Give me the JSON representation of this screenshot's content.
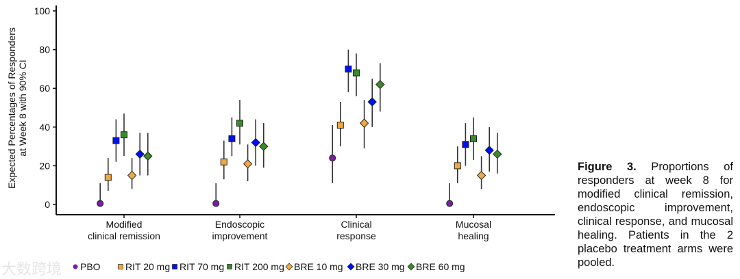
{
  "chart_data": {
    "type": "scatter",
    "ylabel": "Expected Percentages of Responders at Week 8 with 90% CI",
    "ylabel_lines": [
      "Expected Percentages of Responders",
      "at Week 8 with 90% CI"
    ],
    "ylim": [
      0,
      100
    ],
    "yticks": [
      "0",
      "20",
      "40",
      "60",
      "80",
      "100"
    ],
    "categories": [
      [
        "Modified",
        "clinical remission"
      ],
      [
        "Endoscopic",
        "improvement"
      ],
      [
        "Clinical",
        "response"
      ],
      [
        "Mucosal",
        "healing"
      ]
    ],
    "series": [
      {
        "name": "PBO",
        "marker": "circle",
        "color": "#7b1fa2",
        "values": [
          0.5,
          0.5,
          24,
          0.5
        ],
        "ci": [
          [
            0,
            11
          ],
          [
            0,
            11
          ],
          [
            11,
            41
          ],
          [
            0,
            11
          ]
        ]
      },
      {
        "name": "RIT 20 mg",
        "marker": "square",
        "color": "#f0a840",
        "values": [
          14,
          22,
          41,
          20
        ],
        "ci": [
          [
            7,
            24
          ],
          [
            13,
            33
          ],
          [
            30,
            53
          ],
          [
            11,
            30
          ]
        ]
      },
      {
        "name": "RIT 70 mg",
        "marker": "square",
        "color": "#0010f0",
        "values": [
          33,
          34,
          70,
          31
        ],
        "ci": [
          [
            22,
            44
          ],
          [
            25,
            45
          ],
          [
            58,
            80
          ],
          [
            20,
            42
          ]
        ]
      },
      {
        "name": "RIT 200 mg",
        "marker": "square",
        "color": "#3a8a2a",
        "values": [
          36,
          42,
          68,
          34
        ],
        "ci": [
          [
            25,
            47
          ],
          [
            31,
            54
          ],
          [
            56,
            78
          ],
          [
            23,
            45
          ]
        ]
      },
      {
        "name": "BRE 10 mg",
        "marker": "diamond",
        "color": "#f0a840",
        "values": [
          15,
          21,
          42,
          15
        ],
        "ci": [
          [
            8,
            24
          ],
          [
            12,
            31
          ],
          [
            29,
            54
          ],
          [
            8,
            25
          ]
        ]
      },
      {
        "name": "BRE 30 mg",
        "marker": "diamond",
        "color": "#0010f0",
        "values": [
          26,
          32,
          53,
          28
        ],
        "ci": [
          [
            15,
            37
          ],
          [
            20,
            44
          ],
          [
            40,
            65
          ],
          [
            17,
            40
          ]
        ]
      },
      {
        "name": "BRE 60 mg",
        "marker": "diamond",
        "color": "#3a8a2a",
        "values": [
          25,
          30,
          62,
          26
        ],
        "ci": [
          [
            15,
            37
          ],
          [
            19,
            42
          ],
          [
            48,
            73
          ],
          [
            16,
            37
          ]
        ]
      }
    ],
    "legend": "bottom"
  },
  "caption": {
    "label": "Figure 3.",
    "text": " Proportions of responders at week 8 for modified clinical remission, endoscopic improvement, clinical response, and mucosal healing. Patients in the 2 placebo treatment arms were pooled."
  },
  "watermark": "大数跨境"
}
